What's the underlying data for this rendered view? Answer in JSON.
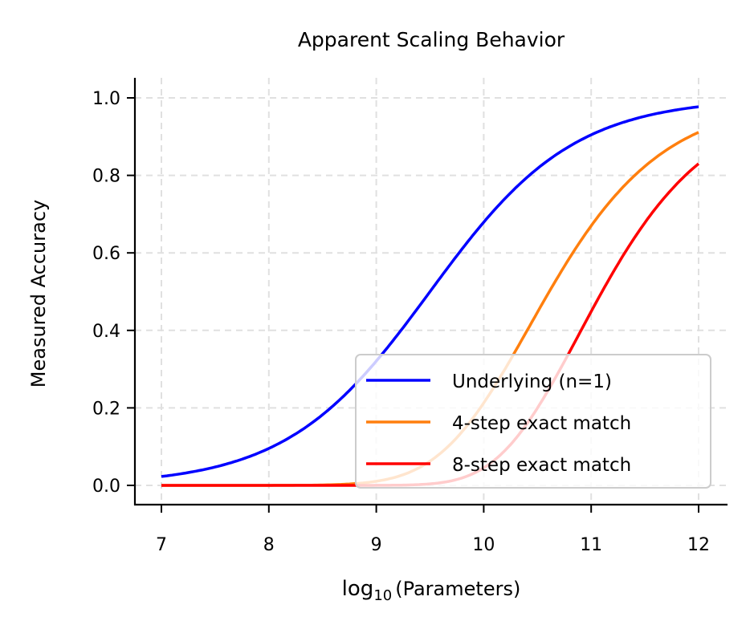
{
  "chart_data": {
    "type": "line",
    "title": "Apparent Scaling Behavior",
    "xlabel": "log10(Parameters)",
    "xlabel_main": "log",
    "xlabel_sub": "10",
    "xlabel_rest": "(Parameters)",
    "ylabel": "Measured Accuracy",
    "xlim": [
      6.75,
      12.25
    ],
    "ylim": [
      -0.05,
      1.05
    ],
    "xticks": [
      7,
      8,
      9,
      10,
      11,
      12
    ],
    "xtick_labels": [
      "7",
      "8",
      "9",
      "10",
      "11",
      "12"
    ],
    "yticks": [
      0.0,
      0.2,
      0.4,
      0.6,
      0.8,
      1.0
    ],
    "ytick_labels": [
      "0.0",
      "0.2",
      "0.4",
      "0.6",
      "0.8",
      "1.0"
    ],
    "grid": true,
    "legend_position": "lower right",
    "x": [
      7.0,
      7.5,
      8.0,
      8.5,
      9.0,
      9.5,
      10.0,
      10.5,
      11.0,
      11.5,
      12.0
    ],
    "series": [
      {
        "name": "Underlying (n=1)",
        "color": "#0000ff",
        "values": [
          0.023,
          0.048,
          0.095,
          0.182,
          0.321,
          0.5,
          0.679,
          0.818,
          0.905,
          0.952,
          0.977
        ]
      },
      {
        "name": "4-step exact match",
        "color": "#ff7f0e",
        "values": [
          0.0,
          0.0,
          0.0001,
          0.0011,
          0.0106,
          0.0625,
          0.2126,
          0.4479,
          0.6708,
          0.8214,
          0.9114
        ]
      },
      {
        "name": "8-step exact match",
        "color": "#ff0000",
        "values": [
          0.0,
          0.0,
          0.0,
          0.0,
          0.0001,
          0.0039,
          0.0452,
          0.2006,
          0.45,
          0.6747,
          0.8306
        ]
      }
    ],
    "model": {
      "underlying": "sigmoid(1.5*(x-9.5))",
      "k_step": "underlying^n"
    }
  }
}
